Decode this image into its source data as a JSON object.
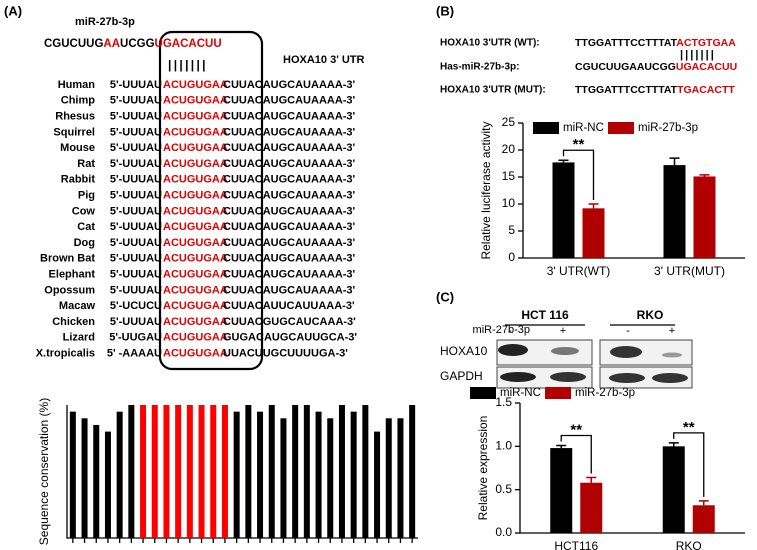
{
  "panel_a": {
    "label": "(A)",
    "mirna_name": "miR-27b-3p",
    "mirna_seq": [
      {
        "text": "CGUCUUG",
        "color": "#000000"
      },
      {
        "text": "AA",
        "color": "#e00000"
      },
      {
        "text": "UCGG",
        "color": "#000000"
      },
      {
        "text": "UGACACUU",
        "color": "#e00000"
      }
    ],
    "pairing": "| | | | | | |",
    "utr_label": "HOXA10 3' UTR",
    "seed_color": "#e00000",
    "rows": [
      {
        "species": "Human",
        "pre": "5'-UUUAU",
        "seed": "ACUGUGAA",
        "post": "CUUACAUGCAUAAAA-3'"
      },
      {
        "species": "Chimp",
        "pre": "5'-UUUAU",
        "seed": "ACUGUGAA",
        "post": "CUUACAUGCAUAAAA-3'"
      },
      {
        "species": "Rhesus",
        "pre": "5'-UUUAU",
        "seed": "ACUGUGAA",
        "post": "CUUACAUGCAUAAAA-3'"
      },
      {
        "species": "Squirrel",
        "pre": "5'-UUUAU",
        "seed": "ACUGUGAA",
        "post": "CUUACAUGCAUAAAA-3'"
      },
      {
        "species": "Mouse",
        "pre": "5'-UUUAU",
        "seed": "ACUGUGAA",
        "post": "CUUACAUGCAUAAAA-3'"
      },
      {
        "species": "Rat",
        "pre": "5'-UUUAU",
        "seed": "ACUGUGAA",
        "post": "CUUACAUGCAUAAAA-3'"
      },
      {
        "species": "Rabbit",
        "pre": "5'-UUUAU",
        "seed": "ACUGUGAA",
        "post": "CUUACAUGCAUAAAA-3'"
      },
      {
        "species": "Pig",
        "pre": "5'-UUUAU",
        "seed": "ACUGUGAA",
        "post": "CUUACAUGCAUAAAA-3'"
      },
      {
        "species": "Cow",
        "pre": "5'-UUUAU",
        "seed": "ACUGUGAA",
        "post": "CUUACAUGCAUAAAA-3'"
      },
      {
        "species": "Cat",
        "pre": "5'-UUUAU",
        "seed": "ACUGUGAA",
        "post": "CUUACAUGCAUAAAA-3'"
      },
      {
        "species": "Dog",
        "pre": "5'-UUUAU",
        "seed": "ACUGUGAA",
        "post": "CUUACAUGCAUAAAA-3'"
      },
      {
        "species": "Brown Bat",
        "pre": "5'-UUUAU",
        "seed": "ACUGUGAA",
        "post": "CUUACAUGCAUAAAA-3'"
      },
      {
        "species": "Elephant",
        "pre": "5'-UUUAU",
        "seed": "ACUGUGAA",
        "post": "CUUACAUGCAUAAAA-3'"
      },
      {
        "species": "Opossum",
        "pre": "5'-UUUAU",
        "seed": "ACUGUGAA",
        "post": "CUUACAUGCAUAAAA-3'"
      },
      {
        "species": "Macaw",
        "pre": "5'-UCUCU",
        "seed": "ACUGUGAA",
        "post": "CUUACAUUCAUUAAA-3'"
      },
      {
        "species": "Chicken",
        "pre": "5'-UUUAU",
        "seed": "ACUGUGAA",
        "post": "CUUACGUGCAUCAAA-3'"
      },
      {
        "species": "Lizard",
        "pre": "5'-UUGAU",
        "seed": "ACUGUGAA",
        "post": "GUGACAUGCAUUGCA-3'"
      },
      {
        "species": "X.tropicalis",
        "pre": "5' -AAAAU",
        "seed": "ACUGUGAA",
        "post": "UUACUUGCUUUUGA-3'"
      }
    ]
  },
  "panel_b": {
    "label": "(B)",
    "site_color": "#e00000",
    "pairing": "| | | | | | |",
    "lines": [
      {
        "label": "HOXA10 3'UTR (WT):",
        "seq": "TTGGATTTCCTTTAT",
        "site": "ACTGTGAA"
      },
      {
        "label": "Has-miR-27b-3p:",
        "seq": "CGUCUUGAAUCGG",
        "site": "UGACACUU"
      },
      {
        "label": "HOXA10 3'UTR (MUT):",
        "seq": "TTGGATTTCCTTTAT",
        "site": "TGACACTT"
      }
    ]
  },
  "panel_c": {
    "label": "(C)",
    "treatment": "miR-27b-3p",
    "proteins": [
      "HOXA10",
      "GAPDH"
    ],
    "groups": [
      {
        "name": "HCT 116",
        "lanes": [
          "-",
          "+"
        ]
      },
      {
        "name": "RKO",
        "lanes": [
          "-",
          "+"
        ]
      }
    ]
  },
  "chart_data": [
    {
      "type": "bar",
      "ylabel": "Sequence conservation (%)",
      "ylim": [
        0,
        100
      ],
      "values": [
        95,
        90,
        85,
        80,
        95,
        100,
        100,
        100,
        100,
        100,
        100,
        100,
        100,
        100,
        95,
        100,
        95,
        100,
        90,
        100,
        100,
        95,
        90,
        100,
        95,
        100,
        80,
        90,
        90,
        100
      ],
      "colors": [
        "#000000",
        "#000000",
        "#000000",
        "#000000",
        "#000000",
        "#000000",
        "#ff0000",
        "#ff0000",
        "#ff0000",
        "#ff0000",
        "#ff0000",
        "#ff0000",
        "#ff0000",
        "#ff0000",
        "#000000",
        "#000000",
        "#000000",
        "#000000",
        "#000000",
        "#000000",
        "#000000",
        "#000000",
        "#000000",
        "#000000",
        "#000000",
        "#000000",
        "#000000",
        "#000000",
        "#000000",
        "#000000"
      ]
    },
    {
      "type": "bar",
      "ylabel": "Relative luciferase activity",
      "categories": [
        "3' UTR(WT)",
        "3' UTR(MUT)"
      ],
      "ylim": [
        0,
        25
      ],
      "yticks": [
        0,
        5,
        10,
        15,
        20,
        25
      ],
      "legend": "top",
      "series": [
        {
          "name": "miR-NC",
          "color": "#000000",
          "values": [
            17.7,
            17.2
          ],
          "errors": [
            0.4,
            1.3
          ]
        },
        {
          "name": "miR-27b-3p",
          "color": "#b00000",
          "values": [
            9.2,
            15.1
          ],
          "errors": [
            0.8,
            0.3
          ]
        }
      ],
      "significance": [
        "**",
        null
      ]
    },
    {
      "type": "bar",
      "ylabel": "Relative expression",
      "categories": [
        "HCT116",
        "RKO"
      ],
      "ylim": [
        0,
        1.5
      ],
      "yticks": [
        {
          "value": 0,
          "label": "0.0"
        },
        {
          "value": 0.5,
          "label": "0.5"
        },
        {
          "value": 1,
          "label": "1.0"
        },
        {
          "value": 1.5,
          "label": "1.5"
        }
      ],
      "legend": "top",
      "series": [
        {
          "name": "miR-NC",
          "color": "#000000",
          "values": [
            0.98,
            1.0
          ],
          "errors": [
            0.03,
            0.04
          ]
        },
        {
          "name": "miR-27b-3p",
          "color": "#b00000",
          "values": [
            0.58,
            0.32
          ],
          "errors": [
            0.06,
            0.05
          ]
        }
      ],
      "significance": [
        "**",
        "**"
      ]
    }
  ]
}
